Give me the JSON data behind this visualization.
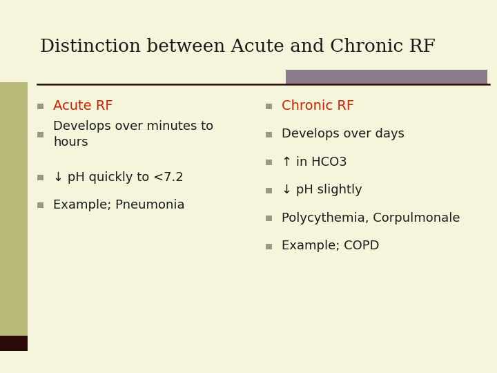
{
  "title": "Distinction between Acute and Chronic RF",
  "title_color": "#1a1a1a",
  "title_fontsize": 19,
  "background_color": "#f5f5dc",
  "left_bar_color": "#b8b878",
  "right_bar_color": "#8b7b8b",
  "divider_color": "#2b0a0a",
  "bullet_color": "#999988",
  "left_col_header": "Acute RF",
  "left_col_header_color": "#cc2200",
  "left_col_items": [
    "Develops over minutes to\nhours",
    "↓ pH quickly to <7.2",
    "Example; Pneumonia"
  ],
  "right_col_header": "Chronic RF",
  "right_col_header_color": "#cc2200",
  "right_col_items": [
    "Develops over days",
    "↑ in HCO3",
    "↓ pH slightly",
    "Polycythemia, Corpulmonale",
    "Example; COPD"
  ],
  "item_color": "#1a1a1a",
  "item_fontsize": 13,
  "header_fontsize": 14
}
